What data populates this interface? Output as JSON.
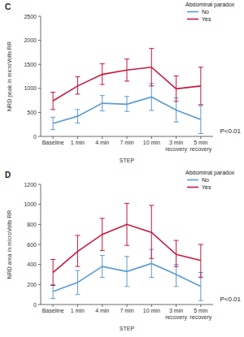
{
  "chart_data": [
    {
      "type": "line",
      "title": "C",
      "y_label": "NRD peak in microVolts RR",
      "x_label": "STEP",
      "legend_title": "Abdominal paradox",
      "legend": "top-right",
      "annotation": "P<0.01",
      "categories": [
        "Baseline",
        "1 min",
        "4 min",
        "7 min",
        "10 min",
        "3 min recovery",
        "5 min recovery"
      ],
      "ylim": [
        0,
        2500
      ],
      "yticks": [
        0,
        500,
        1000,
        1500,
        2000,
        2500
      ],
      "grid": false,
      "series": [
        {
          "name": "No",
          "color": "#5b9bd5",
          "values": [
            270,
            420,
            690,
            670,
            820,
            550,
            350
          ],
          "lower": [
            140,
            280,
            530,
            520,
            540,
            300,
            60
          ],
          "upper": [
            400,
            560,
            850,
            830,
            1100,
            800,
            640
          ]
        },
        {
          "name": "Yes",
          "color": "#c8173c",
          "values": [
            740,
            1050,
            1290,
            1380,
            1440,
            990,
            1050
          ],
          "lower": [
            560,
            880,
            1080,
            1150,
            1050,
            730,
            660
          ],
          "upper": [
            920,
            1240,
            1510,
            1610,
            1830,
            1260,
            1440
          ]
        }
      ]
    },
    {
      "type": "line",
      "title": "D",
      "y_label": "NRD area in microVolts RR",
      "x_label": "STEP",
      "legend_title": "Abdominal paradox",
      "legend": "top-right",
      "annotation": "P<0.01",
      "categories": [
        "Baseline",
        "1 min",
        "4 min",
        "7 min",
        "10 min",
        "3 min recovery",
        "5 min recovery"
      ],
      "ylim": [
        0,
        1200
      ],
      "yticks": [
        0,
        200,
        400,
        600,
        800,
        1000,
        1200
      ],
      "grid": false,
      "series": [
        {
          "name": "No",
          "color": "#5b9bd5",
          "values": [
            130,
            220,
            380,
            330,
            410,
            300,
            180
          ],
          "lower": [
            60,
            100,
            270,
            180,
            270,
            180,
            40
          ],
          "upper": [
            200,
            340,
            490,
            480,
            550,
            400,
            320
          ]
        },
        {
          "name": "Yes",
          "color": "#c8173c",
          "values": [
            320,
            530,
            700,
            800,
            720,
            500,
            440
          ],
          "lower": [
            190,
            380,
            540,
            590,
            460,
            380,
            270
          ],
          "upper": [
            450,
            690,
            860,
            1010,
            990,
            640,
            600
          ]
        }
      ]
    }
  ]
}
